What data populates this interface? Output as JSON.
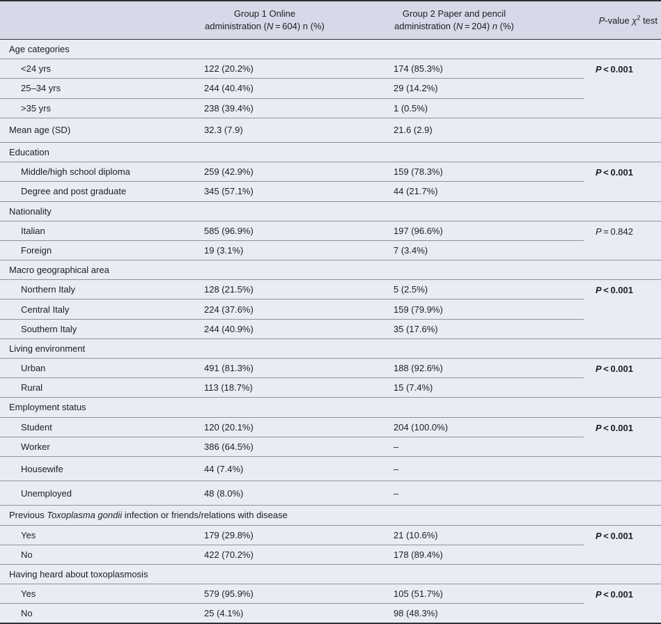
{
  "colors": {
    "header_bg": "#d6d9e7",
    "body_bg": "#e9ecf4",
    "row_rule": "#8f929a",
    "dark_rule": "#2f3135",
    "text": "#1c1d21"
  },
  "table": {
    "columns": [
      {
        "id": "label",
        "line1": "",
        "line2_parts": []
      },
      {
        "id": "group1",
        "line1": "Group 1 Online",
        "line2_parts": [
          {
            "t": "administration ("
          },
          {
            "t": "N",
            "i": true
          },
          {
            "t": " = 604) n (%)"
          }
        ]
      },
      {
        "id": "group2",
        "line1": "Group 2 Paper and pencil",
        "line2_parts": [
          {
            "t": "administration ("
          },
          {
            "t": "N",
            "i": true
          },
          {
            "t": " = 204) "
          },
          {
            "t": "n",
            "i": true
          },
          {
            "t": " (%)"
          }
        ]
      },
      {
        "id": "pvalue",
        "header_parts": [
          {
            "t": "P",
            "i": true
          },
          {
            "t": "-value "
          },
          {
            "t": "χ",
            "i": true
          },
          {
            "t": "2",
            "sup": true
          },
          {
            "t": " test"
          }
        ]
      }
    ],
    "rows": [
      {
        "type": "section",
        "label_parts": [
          {
            "t": "Age categories"
          }
        ]
      },
      {
        "type": "item",
        "label_parts": [
          {
            "t": "<24 yrs"
          }
        ],
        "group1": "122 (20.2%)",
        "group2": "174 (85.3%)",
        "p": {
          "prefix": "P",
          "rest": " < 0.001",
          "bold": true,
          "rowspan": 3
        }
      },
      {
        "type": "item",
        "label_parts": [
          {
            "t": "25–34 yrs"
          }
        ],
        "group1": "244 (40.4%)",
        "group2": "29 (14.2%)"
      },
      {
        "type": "item",
        "label_parts": [
          {
            "t": ">35 yrs"
          }
        ],
        "group1": "238 (39.4%)",
        "group2": "1 (0.5%)"
      },
      {
        "type": "plain",
        "label_parts": [
          {
            "t": "Mean age (SD)"
          }
        ],
        "group1": "32.3 (7.9)",
        "group2": "21.6 (2.9)",
        "p": {
          "empty": true,
          "rowspan": 1
        }
      },
      {
        "type": "section",
        "label_parts": [
          {
            "t": "Education"
          }
        ]
      },
      {
        "type": "item",
        "label_parts": [
          {
            "t": "Middle/high school diploma"
          }
        ],
        "group1": "259 (42.9%)",
        "group2": "159 (78.3%)",
        "p": {
          "prefix": "P",
          "rest": " < 0.001",
          "bold": true,
          "rowspan": 2
        }
      },
      {
        "type": "item",
        "label_parts": [
          {
            "t": "Degree and post graduate"
          }
        ],
        "group1": "345 (57.1%)",
        "group2": "44 (21.7%)"
      },
      {
        "type": "section",
        "label_parts": [
          {
            "t": "Nationality"
          }
        ]
      },
      {
        "type": "item",
        "label_parts": [
          {
            "t": "Italian"
          }
        ],
        "group1": "585 (96.9%)",
        "group2": "197 (96.6%)",
        "p": {
          "prefix": "P",
          "rest": " = 0.842",
          "bold": false,
          "rowspan": 2
        }
      },
      {
        "type": "item",
        "label_parts": [
          {
            "t": "Foreign"
          }
        ],
        "group1": "19 (3.1%)",
        "group2": "7 (3.4%)"
      },
      {
        "type": "section",
        "label_parts": [
          {
            "t": "Macro geographical area"
          }
        ]
      },
      {
        "type": "item",
        "label_parts": [
          {
            "t": "Northern Italy"
          }
        ],
        "group1": "128 (21.5%)",
        "group2": "5 (2.5%)",
        "p": {
          "prefix": "P",
          "rest": " < 0.001",
          "bold": true,
          "rowspan": 3
        }
      },
      {
        "type": "item",
        "label_parts": [
          {
            "t": "Central Italy"
          }
        ],
        "group1": "224 (37.6%)",
        "group2": "159 (79.9%)"
      },
      {
        "type": "item",
        "label_parts": [
          {
            "t": "Southern Italy"
          }
        ],
        "group1": "244 (40.9%)",
        "group2": "35 (17.6%)"
      },
      {
        "type": "section",
        "label_parts": [
          {
            "t": "Living environment"
          }
        ]
      },
      {
        "type": "item",
        "label_parts": [
          {
            "t": "Urban"
          }
        ],
        "group1": "491 (81.3%)",
        "group2": "188 (92.6%)",
        "p": {
          "prefix": "P",
          "rest": " < 0.001",
          "bold": true,
          "rowspan": 2
        }
      },
      {
        "type": "item",
        "label_parts": [
          {
            "t": "Rural"
          }
        ],
        "group1": "113 (18.7%)",
        "group2": "15 (7.4%)"
      },
      {
        "type": "section",
        "label_parts": [
          {
            "t": "Employment status"
          }
        ]
      },
      {
        "type": "item",
        "label_parts": [
          {
            "t": "Student"
          }
        ],
        "group1": "120 (20.1%)",
        "group2": "204 (100.0%)",
        "p": {
          "prefix": "P",
          "rest": " < 0.001",
          "bold": true,
          "rowspan": 2
        }
      },
      {
        "type": "item",
        "label_parts": [
          {
            "t": "Worker"
          }
        ],
        "group1": "386 (64.5%)",
        "group2": "–"
      },
      {
        "type": "item",
        "label_parts": [
          {
            "t": "Housewife"
          }
        ],
        "group1": "44 (7.4%)",
        "group2": "–",
        "p": {
          "empty": true,
          "rowspan": 1
        }
      },
      {
        "type": "item",
        "label_parts": [
          {
            "t": "Unemployed"
          }
        ],
        "group1": "48 (8.0%)",
        "group2": "–",
        "p": {
          "empty": true,
          "rowspan": 1
        }
      },
      {
        "type": "section",
        "label_parts": [
          {
            "t": "Previous "
          },
          {
            "t": "Toxoplasma gondii",
            "i": true
          },
          {
            "t": " infection or friends/relations with disease"
          }
        ]
      },
      {
        "type": "item",
        "label_parts": [
          {
            "t": "Yes"
          }
        ],
        "group1": "179 (29.8%)",
        "group2": "21 (10.6%)",
        "p": {
          "prefix": "P",
          "rest": " < 0.001",
          "bold": true,
          "rowspan": 2
        }
      },
      {
        "type": "item",
        "label_parts": [
          {
            "t": "No"
          }
        ],
        "group1": "422 (70.2%)",
        "group2": "178 (89.4%)"
      },
      {
        "type": "section",
        "label_parts": [
          {
            "t": "Having heard about toxoplasmosis"
          }
        ]
      },
      {
        "type": "item",
        "label_parts": [
          {
            "t": "Yes"
          }
        ],
        "group1": "579 (95.9%)",
        "group2": "105 (51.7%)",
        "p": {
          "prefix": "P",
          "rest": " < 0.001",
          "bold": true,
          "rowspan": 2
        }
      },
      {
        "type": "item",
        "label_parts": [
          {
            "t": "No"
          }
        ],
        "group1": "25 (4.1%)",
        "group2": "98 (48.3%)"
      }
    ]
  }
}
